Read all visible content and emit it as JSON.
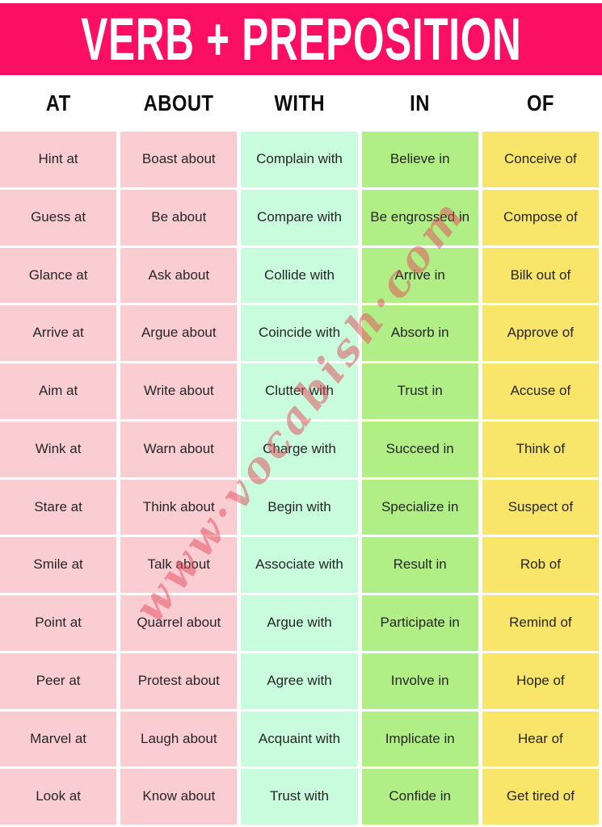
{
  "title": "VERB + PREPOSITION",
  "watermark": "www·vocabish·com",
  "colors": {
    "banner": "#FA0F62",
    "banner_text": "#FFFFFF",
    "pink": "#FACDD2",
    "mint": "#C9FBDD",
    "green": "#B2EE86",
    "yellow": "#F8E569",
    "watermark": "rgba(226, 74, 90, 0.5)"
  },
  "columns": [
    {
      "label": "AT",
      "color_key": "pink",
      "items": [
        "Hint at",
        "Guess at",
        "Glance at",
        "Arrive at",
        "Aim at",
        "Wink at",
        "Stare at",
        "Smile at",
        "Point at",
        "Peer at",
        "Marvel at",
        "Look at"
      ]
    },
    {
      "label": "ABOUT",
      "color_key": "pink",
      "items": [
        "Boast about",
        "Be about",
        "Ask about",
        "Argue about",
        "Write about",
        "Warn about",
        "Think about",
        "Talk about",
        "Quarrel about",
        "Protest about",
        "Laugh about",
        "Know about"
      ]
    },
    {
      "label": "WITH",
      "color_key": "mint",
      "items": [
        "Complain with",
        "Compare with",
        "Collide with",
        "Coincide with",
        "Clutter with",
        "Charge with",
        "Begin with",
        "Associate with",
        "Argue with",
        "Agree with",
        "Acquaint with",
        "Trust with"
      ]
    },
    {
      "label": "IN",
      "color_key": "green",
      "items": [
        "Believe in",
        "Be engrossed in",
        "Arrive in",
        "Absorb in",
        "Trust in",
        "Succeed in",
        "Specialize in",
        "Result in",
        "Participate in",
        "Involve in",
        "Implicate in",
        "Confide in"
      ]
    },
    {
      "label": "OF",
      "color_key": "yellow",
      "items": [
        "Conceive of",
        "Compose of",
        "Bilk out of",
        "Approve of",
        "Accuse of",
        "Think of",
        "Suspect of",
        "Rob of",
        "Remind of",
        "Hope of",
        "Hear of",
        "Get tired of"
      ]
    }
  ]
}
